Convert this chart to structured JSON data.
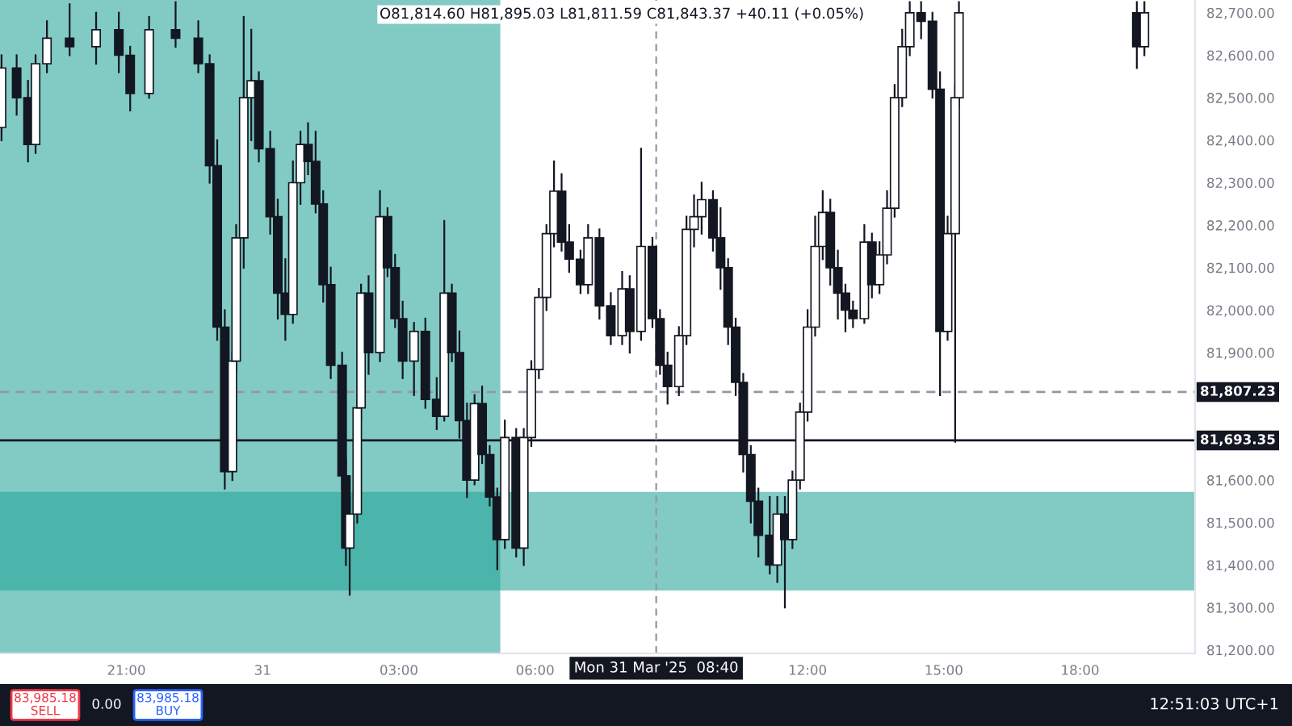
{
  "chart_data": {
    "type": "candlestick",
    "color": "#131722",
    "grid": false,
    "x": [
      "2025-03-30T18:15",
      "2025-03-30T18:35",
      "2025-03-30T18:50",
      "2025-03-30T19:00",
      "2025-03-30T19:15",
      "2025-03-30T19:45",
      "2025-03-30T20:20",
      "2025-03-30T20:50",
      "2025-03-30T21:05",
      "2025-03-30T21:30",
      "2025-03-30T22:05",
      "2025-03-30T22:35",
      "2025-03-30T22:50",
      "2025-03-30T23:00",
      "2025-03-30T23:10",
      "2025-03-30T23:20",
      "2025-03-30T23:25",
      "2025-03-30T23:35",
      "2025-03-30T23:45",
      "2025-03-30T23:55",
      "2025-03-31T00:10",
      "2025-03-31T00:20",
      "2025-03-31T00:30",
      "2025-03-31T00:40",
      "2025-03-31T00:50",
      "2025-03-31T01:00",
      "2025-03-31T01:10",
      "2025-03-31T01:20",
      "2025-03-31T01:30",
      "2025-03-31T01:45",
      "2025-03-31T01:50",
      "2025-03-31T01:55",
      "2025-03-31T02:05",
      "2025-03-31T02:10",
      "2025-03-31T02:20",
      "2025-03-31T02:35",
      "2025-03-31T02:45",
      "2025-03-31T02:55",
      "2025-03-31T03:05",
      "2025-03-31T03:20",
      "2025-03-31T03:35",
      "2025-03-31T03:50",
      "2025-03-31T04:00",
      "2025-03-31T04:10",
      "2025-03-31T04:20",
      "2025-03-31T04:30",
      "2025-03-31T04:40",
      "2025-03-31T04:50",
      "2025-03-31T05:00",
      "2025-03-31T05:10",
      "2025-03-31T05:20",
      "2025-03-31T05:35",
      "2025-03-31T05:45",
      "2025-03-31T05:55",
      "2025-03-31T06:05",
      "2025-03-31T06:15",
      "2025-03-31T06:25",
      "2025-03-31T06:35",
      "2025-03-31T06:45",
      "2025-03-31T07:00",
      "2025-03-31T07:10",
      "2025-03-31T07:25",
      "2025-03-31T07:40",
      "2025-03-31T07:55",
      "2025-03-31T08:05",
      "2025-03-31T08:20",
      "2025-03-31T08:35",
      "2025-03-31T08:45",
      "2025-03-31T08:55",
      "2025-03-31T09:10",
      "2025-03-31T09:20",
      "2025-03-31T09:30",
      "2025-03-31T09:40",
      "2025-03-31T09:55",
      "2025-03-31T10:05",
      "2025-03-31T10:15",
      "2025-03-31T10:25",
      "2025-03-31T10:35",
      "2025-03-31T10:45",
      "2025-03-31T10:55",
      "2025-03-31T11:10",
      "2025-03-31T11:20",
      "2025-03-31T11:30",
      "2025-03-31T11:40",
      "2025-03-31T11:50",
      "2025-03-31T12:00",
      "2025-03-31T12:10",
      "2025-03-31T12:20",
      "2025-03-31T12:30",
      "2025-03-31T12:40",
      "2025-03-31T12:50",
      "2025-03-31T13:00",
      "2025-03-31T13:15",
      "2025-03-31T13:25",
      "2025-03-31T13:35",
      "2025-03-31T13:45",
      "2025-03-31T13:55",
      "2025-03-31T14:05",
      "2025-03-31T14:15",
      "2025-03-31T14:30",
      "2025-03-31T14:45",
      "2025-03-31T14:55",
      "2025-03-31T15:05",
      "2025-03-31T15:15",
      "2025-03-31T15:20",
      "2025-03-31T19:15",
      "2025-03-31T19:25"
    ],
    "ohlc": [
      [
        82430,
        82600,
        82400,
        82570
      ],
      [
        82570,
        82600,
        82460,
        82500
      ],
      [
        82500,
        82540,
        82350,
        82390
      ],
      [
        82390,
        82600,
        82370,
        82580
      ],
      [
        82580,
        82680,
        82560,
        82640
      ],
      [
        82640,
        82720,
        82600,
        82620
      ],
      [
        82620,
        82700,
        82580,
        82660
      ],
      [
        82660,
        82700,
        82560,
        82600
      ],
      [
        82600,
        82620,
        82470,
        82510
      ],
      [
        82510,
        82690,
        82500,
        82660
      ],
      [
        82660,
        82725,
        82620,
        82640
      ],
      [
        82640,
        82680,
        82560,
        82580
      ],
      [
        82580,
        82600,
        82300,
        82340
      ],
      [
        82340,
        82400,
        81930,
        81960
      ],
      [
        81960,
        82000,
        81580,
        81620
      ],
      [
        81620,
        81900,
        81600,
        81880
      ],
      [
        81880,
        82200,
        81860,
        82170
      ],
      [
        82170,
        82690,
        82100,
        82500
      ],
      [
        82500,
        82660,
        82400,
        82540
      ],
      [
        82540,
        82560,
        82350,
        82380
      ],
      [
        82380,
        82420,
        82180,
        82220
      ],
      [
        82220,
        82260,
        81980,
        82040
      ],
      [
        82040,
        82120,
        81930,
        81990
      ],
      [
        81990,
        82350,
        81970,
        82300
      ],
      [
        82300,
        82420,
        82250,
        82390
      ],
      [
        82390,
        82440,
        82320,
        82350
      ],
      [
        82350,
        82420,
        82230,
        82250
      ],
      [
        82250,
        82280,
        82020,
        82060
      ],
      [
        82060,
        82100,
        81840,
        81870
      ],
      [
        81870,
        81900,
        81580,
        81610
      ],
      [
        81610,
        81650,
        81400,
        81440
      ],
      [
        81440,
        81560,
        81330,
        81520
      ],
      [
        81520,
        81800,
        81500,
        81770
      ],
      [
        81770,
        82060,
        81740,
        82040
      ],
      [
        82040,
        82080,
        81850,
        81900
      ],
      [
        81900,
        82280,
        81880,
        82220
      ],
      [
        82220,
        82240,
        82080,
        82100
      ],
      [
        82100,
        82130,
        81960,
        81980
      ],
      [
        81980,
        82020,
        81840,
        81880
      ],
      [
        81880,
        81970,
        81800,
        81950
      ],
      [
        81950,
        81980,
        81770,
        81790
      ],
      [
        81790,
        81840,
        81720,
        81750
      ],
      [
        81750,
        82210,
        81740,
        82040
      ],
      [
        82040,
        82060,
        81880,
        81900
      ],
      [
        81900,
        81950,
        81700,
        81740
      ],
      [
        81740,
        81780,
        81560,
        81600
      ],
      [
        81600,
        81800,
        81590,
        81780
      ],
      [
        81780,
        81820,
        81640,
        81660
      ],
      [
        81660,
        81680,
        81540,
        81560
      ],
      [
        81560,
        81580,
        81390,
        81460
      ],
      [
        81460,
        81740,
        81440,
        81700
      ],
      [
        81700,
        81720,
        81420,
        81440
      ],
      [
        81440,
        81720,
        81400,
        81700
      ],
      [
        81700,
        81880,
        81680,
        81860
      ],
      [
        81860,
        82050,
        81840,
        82030
      ],
      [
        82030,
        82200,
        82000,
        82180
      ],
      [
        82180,
        82350,
        82150,
        82280
      ],
      [
        82280,
        82320,
        82140,
        82160
      ],
      [
        82160,
        82200,
        82090,
        82120
      ],
      [
        82120,
        82140,
        82040,
        82060
      ],
      [
        82060,
        82200,
        82040,
        82170
      ],
      [
        82170,
        82190,
        81980,
        82010
      ],
      [
        82010,
        82040,
        81920,
        81940
      ],
      [
        81940,
        82090,
        81920,
        82050
      ],
      [
        82050,
        82080,
        81900,
        81950
      ],
      [
        81950,
        82380,
        81930,
        82150
      ],
      [
        82150,
        82170,
        81960,
        81980
      ],
      [
        81980,
        82000,
        81850,
        81870
      ],
      [
        81870,
        81900,
        81780,
        81820
      ],
      [
        81820,
        81960,
        81800,
        81940
      ],
      [
        81940,
        82220,
        81920,
        82190
      ],
      [
        82190,
        82270,
        82150,
        82220
      ],
      [
        82220,
        82300,
        82180,
        82260
      ],
      [
        82260,
        82280,
        82140,
        82170
      ],
      [
        82170,
        82240,
        82050,
        82100
      ],
      [
        82100,
        82120,
        81920,
        81960
      ],
      [
        81960,
        81980,
        81800,
        81830
      ],
      [
        81830,
        81850,
        81620,
        81660
      ],
      [
        81660,
        81680,
        81500,
        81550
      ],
      [
        81550,
        81580,
        81420,
        81470
      ],
      [
        81470,
        81560,
        81380,
        81400
      ],
      [
        81400,
        81560,
        81360,
        81520
      ],
      [
        81520,
        81560,
        81300,
        81460
      ],
      [
        81460,
        81620,
        81440,
        81600
      ],
      [
        81600,
        81780,
        81580,
        81760
      ],
      [
        81760,
        82000,
        81740,
        81960
      ],
      [
        81960,
        82220,
        81940,
        82150
      ],
      [
        82150,
        82280,
        82120,
        82230
      ],
      [
        82230,
        82260,
        82060,
        82100
      ],
      [
        82100,
        82140,
        81980,
        82040
      ],
      [
        82040,
        82060,
        81950,
        82000
      ],
      [
        82000,
        82020,
        81960,
        81980
      ],
      [
        81980,
        82200,
        81970,
        82160
      ],
      [
        82160,
        82180,
        82030,
        82060
      ],
      [
        82060,
        82160,
        82040,
        82130
      ],
      [
        82130,
        82280,
        82110,
        82240
      ],
      [
        82240,
        82530,
        82220,
        82500
      ],
      [
        82500,
        82660,
        82480,
        82620
      ],
      [
        82620,
        82725,
        82600,
        82700
      ],
      [
        82700,
        82725,
        82640,
        82680
      ],
      [
        82680,
        82700,
        82500,
        82520
      ],
      [
        82520,
        82560,
        81800,
        81950
      ],
      [
        81950,
        82220,
        81930,
        82180
      ],
      [
        82180,
        82530,
        81690,
        82500
      ],
      [
        82500,
        82725,
        82480,
        82700
      ],
      [
        82700,
        82725,
        82570,
        82620
      ],
      [
        82620,
        82725,
        82600,
        82700
      ]
    ],
    "xlim": [
      "2025-03-30T18:13",
      "2025-03-31T20:32"
    ],
    "ylim": [
      81192,
      82730
    ],
    "xticks": [
      {
        "value": "2025-03-30T21:00",
        "label": "21:00"
      },
      {
        "value": "2025-03-31T00:00",
        "label": "31"
      },
      {
        "value": "2025-03-31T03:00",
        "label": "03:00"
      },
      {
        "value": "2025-03-31T06:00",
        "label": "06:00"
      },
      {
        "value": "2025-03-31T12:00",
        "label": "12:00"
      },
      {
        "value": "2025-03-31T15:00",
        "label": "15:00"
      },
      {
        "value": "2025-03-31T18:00",
        "label": "18:00"
      }
    ],
    "yticks": [
      {
        "value": 81200,
        "label": "81,200.00"
      },
      {
        "value": 81300,
        "label": "81,300.00"
      },
      {
        "value": 81400,
        "label": "81,400.00"
      },
      {
        "value": 81500,
        "label": "81,500.00"
      },
      {
        "value": 81600,
        "label": "81,600.00"
      },
      {
        "value": 81900,
        "label": "81,900.00"
      },
      {
        "value": 82000,
        "label": "82,000.00"
      },
      {
        "value": 82100,
        "label": "82,100.00"
      },
      {
        "value": 82200,
        "label": "82,200.00"
      },
      {
        "value": 82300,
        "label": "82,300.00"
      },
      {
        "value": 82400,
        "label": "82,400.00"
      },
      {
        "value": 82500,
        "label": "82,500.00"
      },
      {
        "value": 82600,
        "label": "82,600.00"
      },
      {
        "value": 82700,
        "label": "82,700.00"
      }
    ],
    "bands": [
      {
        "axis": "x",
        "from": "2025-03-30T18:13",
        "to": "2025-03-31T05:14",
        "color": "#26a69a"
      },
      {
        "axis": "y",
        "from": 81340,
        "to": 81572,
        "color": "#26a69a"
      }
    ],
    "ref_lines": [
      {
        "axis": "y",
        "value": 81807.23,
        "label": "81,807.23",
        "line_style": "dashed",
        "color": "#9598a1"
      },
      {
        "axis": "y",
        "value": 81693.35,
        "label": "81,693.35",
        "line_style": "solid",
        "color": "#131722"
      },
      {
        "axis": "x",
        "value": "2025-03-31T08:40",
        "label": "Mon 31 Mar '25  08:40",
        "line_style": "dashed",
        "color": "#9598a1"
      }
    ],
    "annotations": [
      "O81,814.60 H81,895.03 L81,811.59 C81,843.37 +40.11 (+0.05%)",
      "83,985.18\nSELL",
      "0.00",
      "83,985.18\nBUY",
      "12:51:03 UTC+1"
    ]
  }
}
